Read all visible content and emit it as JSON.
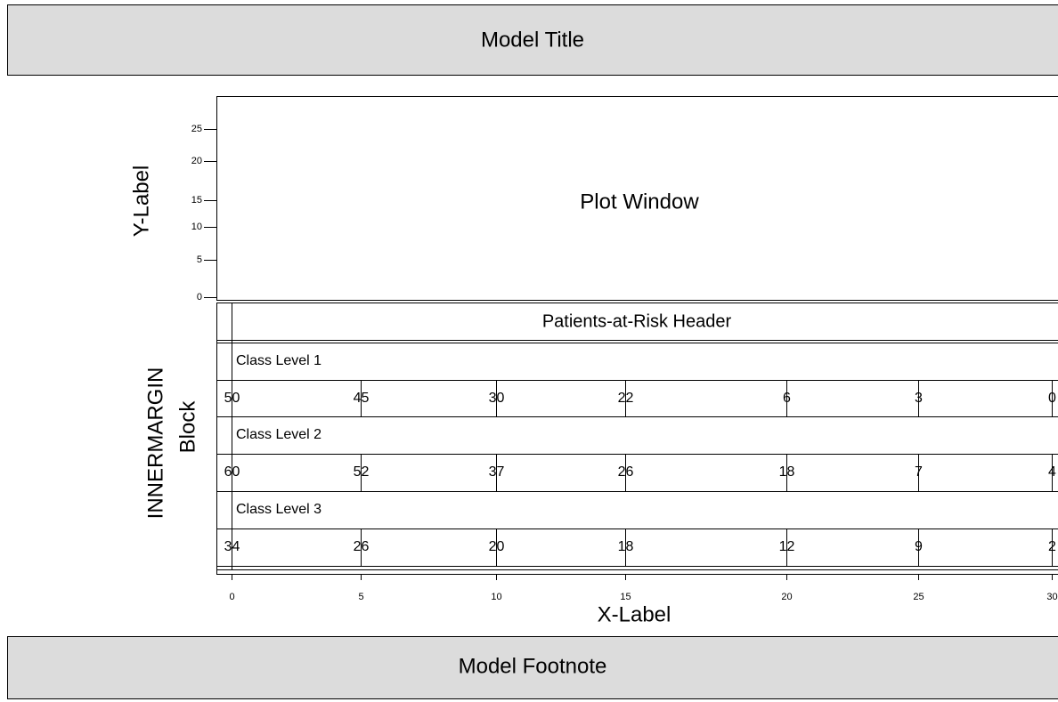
{
  "title": "Model Title",
  "y_label": "Y-Label",
  "y_ticks": [
    "25",
    "20",
    "15",
    "10",
    "5",
    "0"
  ],
  "plot_window": "Plot Window",
  "block_label": [
    "INNERMARGIN",
    "Block"
  ],
  "risk_header": "Patients-at-Risk Header",
  "classes": [
    {
      "label": "Class Level 1",
      "counts": [
        "50",
        "45",
        "30",
        "22",
        "6",
        "3",
        "0"
      ]
    },
    {
      "label": "Class Level 2",
      "counts": [
        "60",
        "52",
        "37",
        "26",
        "18",
        "7",
        "4"
      ]
    },
    {
      "label": "Class Level 3",
      "counts": [
        "34",
        "26",
        "20",
        "18",
        "12",
        "9",
        "2"
      ]
    }
  ],
  "x_ticks": [
    "0",
    "5",
    "10",
    "15",
    "20",
    "25",
    "30"
  ],
  "x_label": "X-Label",
  "footnote": "Model Footnote"
}
